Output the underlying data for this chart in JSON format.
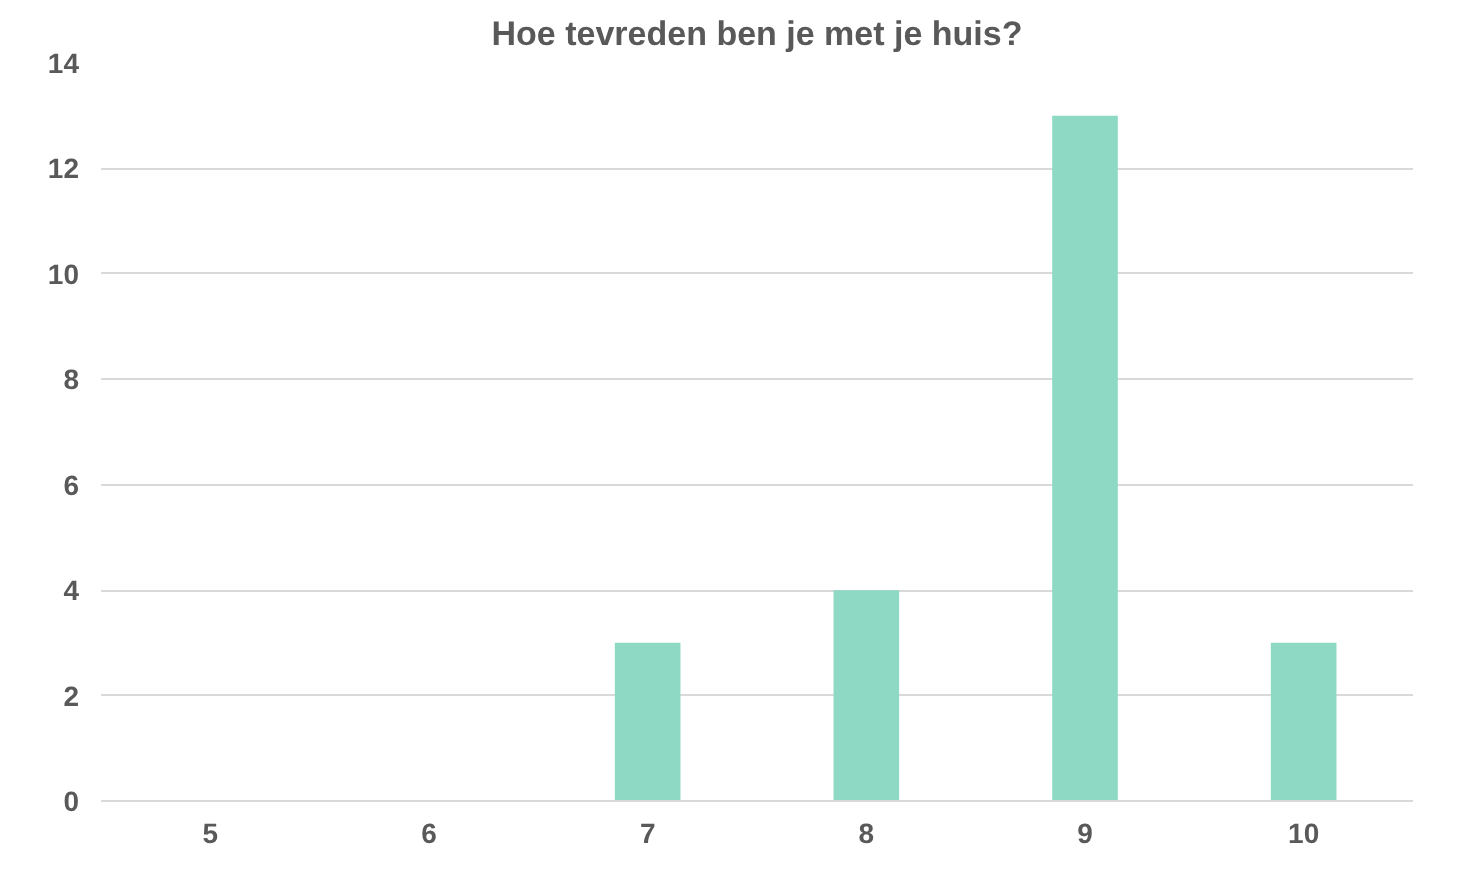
{
  "chart_data": {
    "type": "bar",
    "title": "Hoe tevreden ben je met je huis?",
    "categories": [
      "5",
      "6",
      "7",
      "8",
      "9",
      "10"
    ],
    "values": [
      0,
      0,
      3,
      4,
      13,
      3
    ],
    "color": "#8dd9c4",
    "ylim": [
      0,
      14
    ],
    "yticks": [
      0,
      2,
      4,
      6,
      8,
      10,
      12,
      14
    ],
    "grid": "y"
  }
}
